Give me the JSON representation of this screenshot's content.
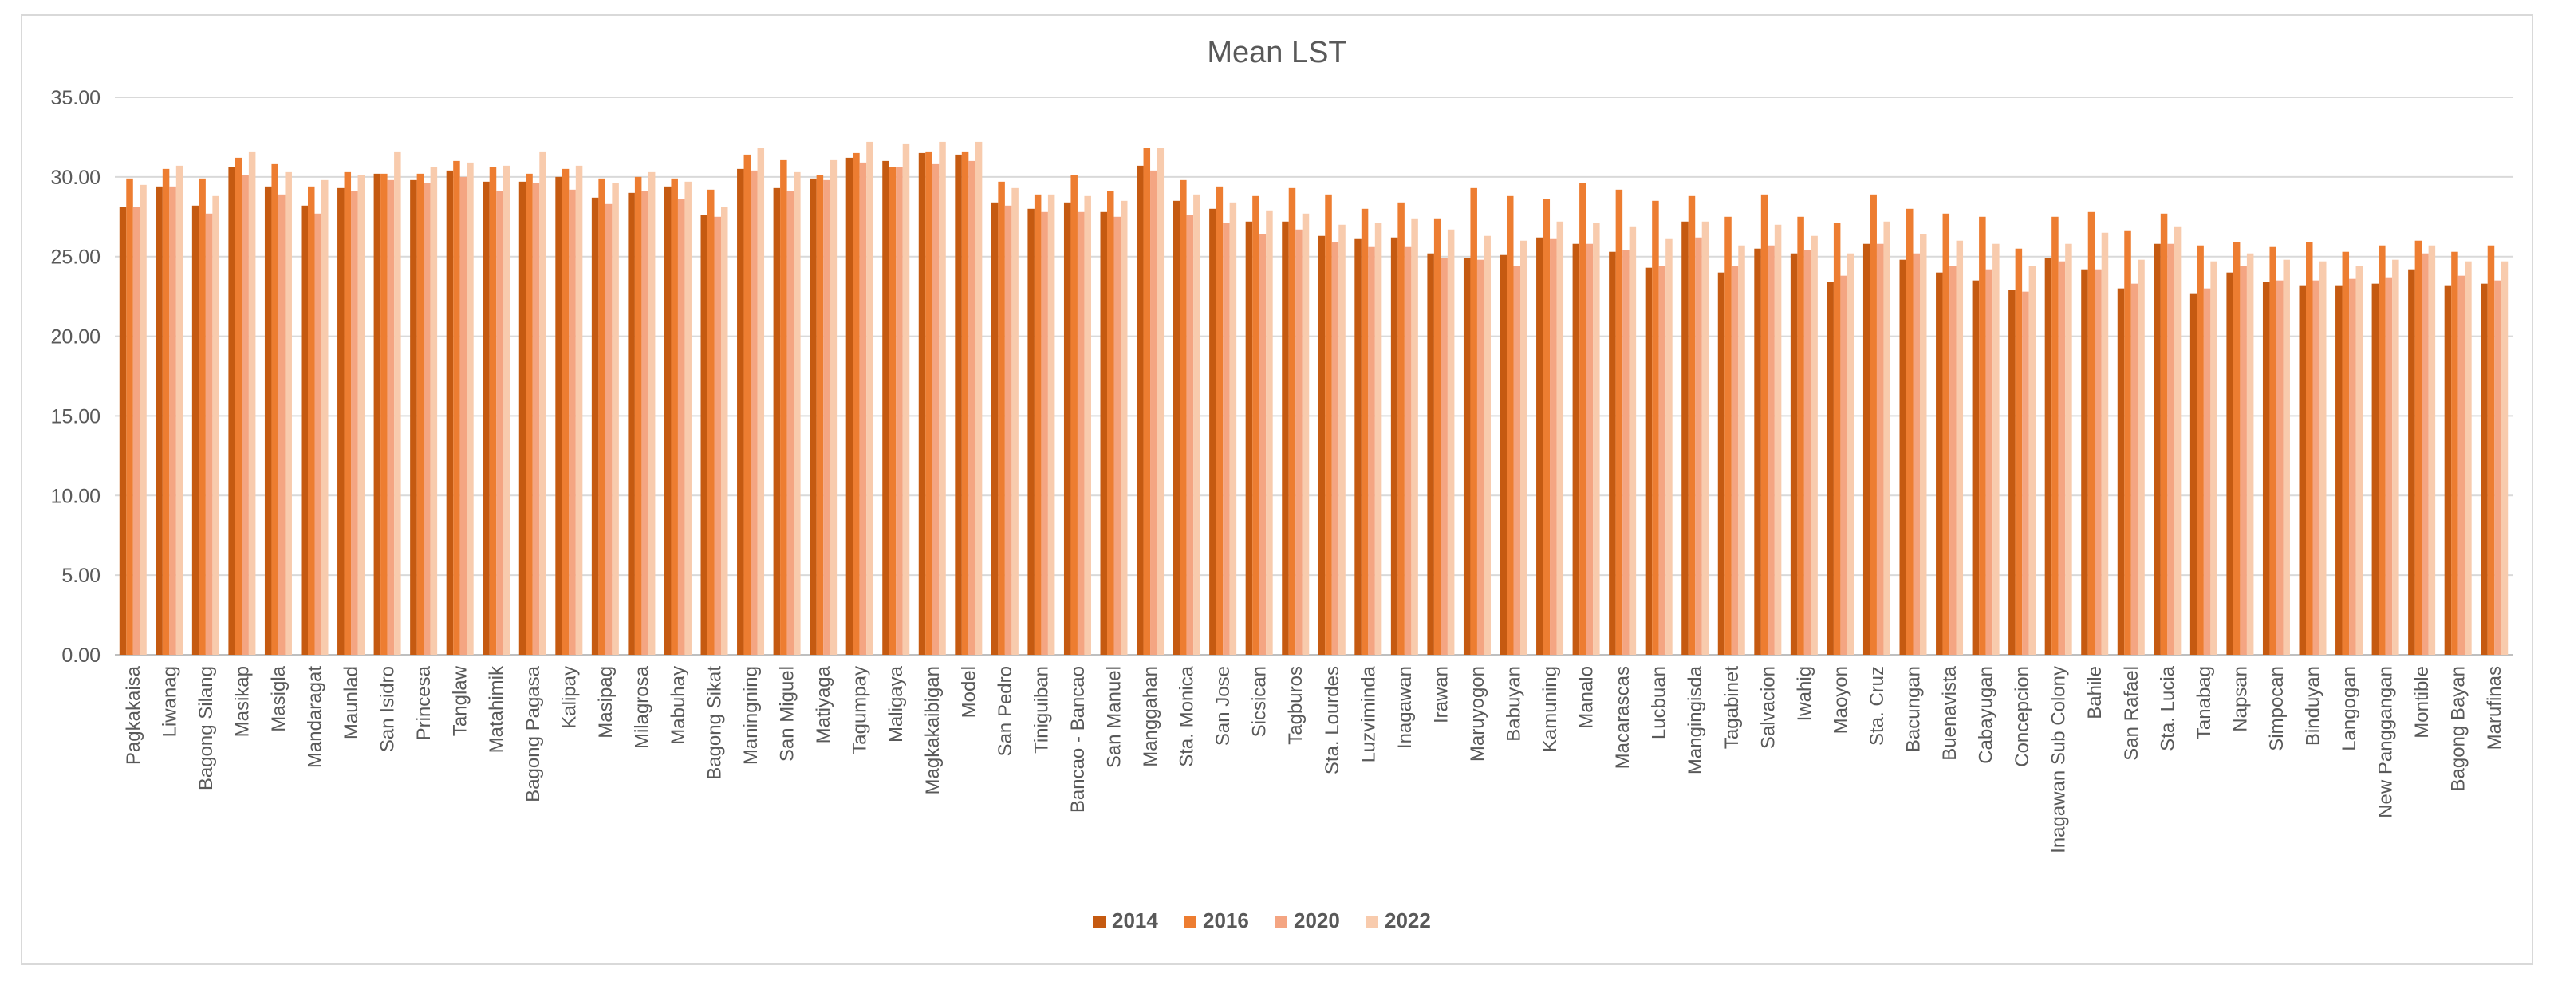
{
  "chart_data": {
    "type": "bar",
    "title": "Mean LST",
    "xlabel": "",
    "ylabel": "",
    "ylim": [
      0,
      35
    ],
    "yticks": [
      "0.00",
      "5.00",
      "10.00",
      "15.00",
      "20.00",
      "25.00",
      "30.00",
      "35.00"
    ],
    "grid": true,
    "legend_position": "bottom",
    "colors": [
      "#c55a11",
      "#ed7d31",
      "#f4a582",
      "#f8cbad"
    ],
    "categories": [
      "Pagkakaisa",
      "Liwanag",
      "Bagong Silang",
      "Masikap",
      "Masigla",
      "Mandaragat",
      "Maunlad",
      "San Isidro",
      "Princesa",
      "Tanglaw",
      "Matahimik",
      "Bagong Pagasa",
      "Kalipay",
      "Masipag",
      "Milagrosa",
      "Mabuhay",
      "Bagong Sikat",
      "Maningning",
      "San Miguel",
      "Matiyaga",
      "Tagumpay",
      "Maligaya",
      "Magkakaibigan",
      "Model",
      "San Pedro",
      "Tiniguiban",
      "Bancao - Bancao",
      "San Manuel",
      "Manggahan",
      "Sta. Monica",
      "San Jose",
      "Sicsican",
      "Tagburos",
      "Sta. Lourdes",
      "Luzviminda",
      "Inagawan",
      "Irawan",
      "Maruyogon",
      "Babuyan",
      "Kamuning",
      "Manalo",
      "Macarascas",
      "Lucbuan",
      "Mangingisda",
      "Tagabinet",
      "Salvacion",
      "Iwahig",
      "Maoyon",
      "Sta. Cruz",
      "Bacungan",
      "Buenavista",
      "Cabayugan",
      "Concepcion",
      "Inagawan Sub Colony",
      "Bahile",
      "San Rafael",
      "Sta. Lucia",
      "Tanabag",
      "Napsan",
      "Simpocan",
      "Binduyan",
      "Langogan",
      "New Panggangan",
      "Montible",
      "Bagong Bayan",
      "Marufinas"
    ],
    "series": [
      {
        "name": "2014",
        "values": [
          28.1,
          29.4,
          28.2,
          30.6,
          29.4,
          28.2,
          29.3,
          30.2,
          29.8,
          30.4,
          29.7,
          29.7,
          30.0,
          28.7,
          29.0,
          29.4,
          27.6,
          30.5,
          29.3,
          29.9,
          31.2,
          31.0,
          31.5,
          31.4,
          28.4,
          28.0,
          28.4,
          27.8,
          30.7,
          28.5,
          28.0,
          27.2,
          27.2,
          26.3,
          26.1,
          26.2,
          25.2,
          24.9,
          25.1,
          26.2,
          25.8,
          25.3,
          24.3,
          27.2,
          24.0,
          25.5,
          25.2,
          23.4,
          25.8,
          24.8,
          24.0,
          23.5,
          22.9,
          24.9,
          24.2,
          23.0,
          25.8,
          22.7,
          24.0,
          23.4,
          23.2,
          23.2,
          23.3,
          24.2,
          23.2,
          23.3
        ]
      },
      {
        "name": "2016",
        "values": [
          29.9,
          30.5,
          29.9,
          31.2,
          30.8,
          29.4,
          30.3,
          30.2,
          30.2,
          31.0,
          30.6,
          30.2,
          30.5,
          29.9,
          30.0,
          29.9,
          29.2,
          31.4,
          31.1,
          30.1,
          31.5,
          30.6,
          31.6,
          31.6,
          29.7,
          28.9,
          30.1,
          29.1,
          31.8,
          29.8,
          29.4,
          28.8,
          29.3,
          28.9,
          28.0,
          28.4,
          27.4,
          29.3,
          28.8,
          28.6,
          29.6,
          29.2,
          28.5,
          28.8,
          27.5,
          28.9,
          27.5,
          27.1,
          28.9,
          28.0,
          27.7,
          27.5,
          25.5,
          27.5,
          27.8,
          26.6,
          27.7,
          25.7,
          25.9,
          25.6,
          25.9,
          25.3,
          25.7,
          26.0,
          25.3,
          25.7
        ]
      },
      {
        "name": "2020",
        "values": [
          28.1,
          29.4,
          27.7,
          30.1,
          28.9,
          27.7,
          29.1,
          29.8,
          29.6,
          30.0,
          29.1,
          29.6,
          29.2,
          28.3,
          29.1,
          28.6,
          27.5,
          30.4,
          29.1,
          29.8,
          30.9,
          30.6,
          30.8,
          31.0,
          28.2,
          27.8,
          27.8,
          27.5,
          30.4,
          27.6,
          27.1,
          26.4,
          26.7,
          25.9,
          25.6,
          25.6,
          24.9,
          24.8,
          24.4,
          26.1,
          25.8,
          25.4,
          24.4,
          26.2,
          24.4,
          25.7,
          25.4,
          23.8,
          25.8,
          25.2,
          24.4,
          24.2,
          22.8,
          24.7,
          24.2,
          23.3,
          25.8,
          23.0,
          24.4,
          23.5,
          23.5,
          23.6,
          23.7,
          25.2,
          23.8,
          23.5
        ]
      },
      {
        "name": "2022",
        "values": [
          29.5,
          30.7,
          28.8,
          31.6,
          30.3,
          29.8,
          30.1,
          31.6,
          30.6,
          30.9,
          30.7,
          31.6,
          30.7,
          29.6,
          30.3,
          29.7,
          28.1,
          31.8,
          30.3,
          31.1,
          32.2,
          32.1,
          32.2,
          32.2,
          29.3,
          28.9,
          28.8,
          28.5,
          31.8,
          28.9,
          28.4,
          27.9,
          27.7,
          27.0,
          27.1,
          27.4,
          26.7,
          26.3,
          26.0,
          27.2,
          27.1,
          26.9,
          26.1,
          27.2,
          25.7,
          27.0,
          26.3,
          25.2,
          27.2,
          26.4,
          26.0,
          25.8,
          24.4,
          25.8,
          26.5,
          24.8,
          26.9,
          24.7,
          25.2,
          24.8,
          24.7,
          24.4,
          24.8,
          25.7,
          24.7,
          24.7
        ]
      }
    ]
  }
}
